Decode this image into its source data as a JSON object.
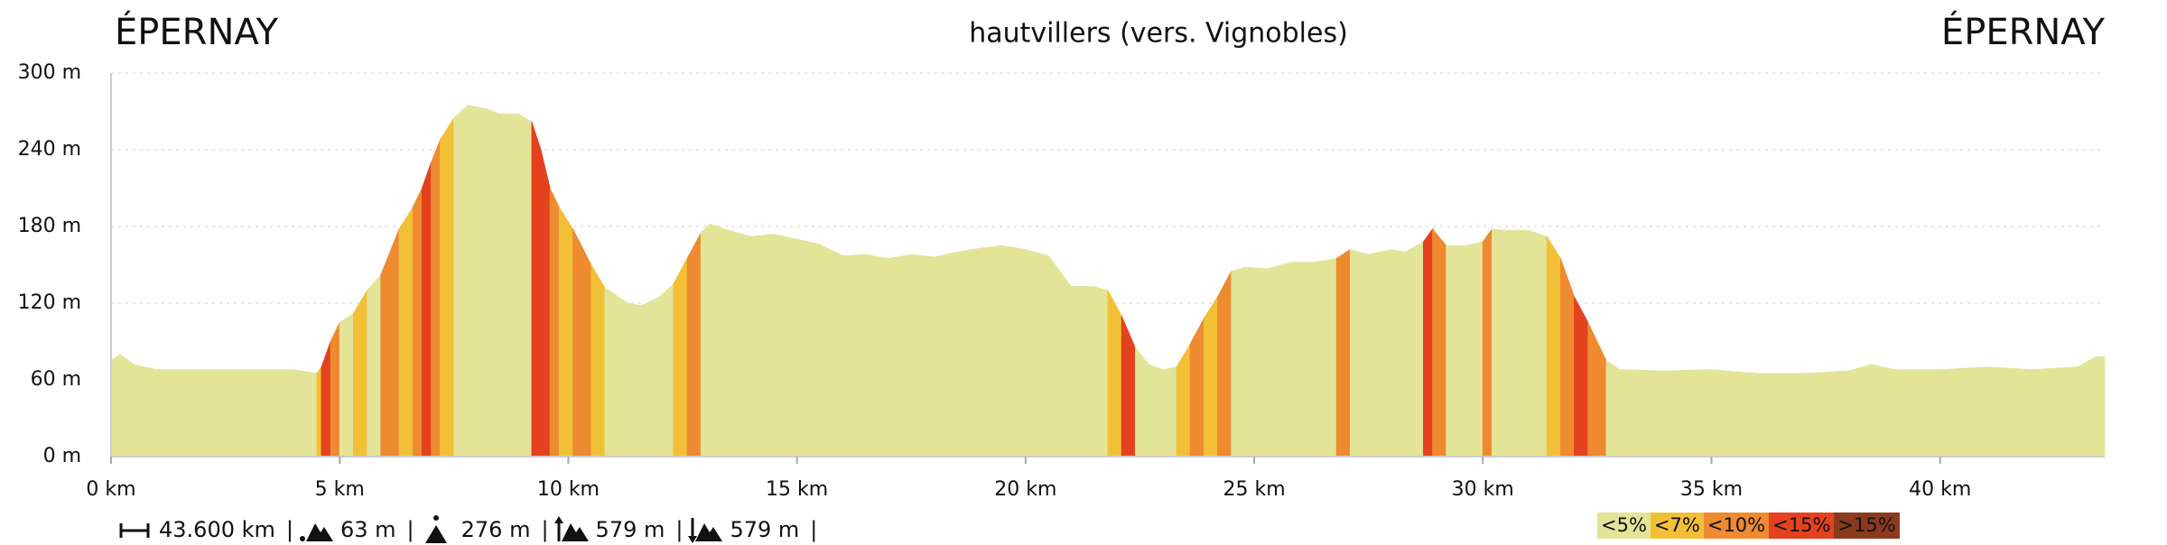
{
  "chart_data": {
    "type": "elevation",
    "title": "hautvillers (vers. Vignobles)",
    "start_label": "ÉPERNAY",
    "end_label": "ÉPERNAY",
    "x": [
      0,
      0.2,
      0.5,
      1,
      2,
      3,
      4,
      4.5,
      4.6,
      4.8,
      5.0,
      5.3,
      5.6,
      5.9,
      6.1,
      6.3,
      6.6,
      6.8,
      7.0,
      7.2,
      7.5,
      7.8,
      8.2,
      8.5,
      8.9,
      9.2,
      9.4,
      9.6,
      9.8,
      10.1,
      10.5,
      10.8,
      11.3,
      11.6,
      12.0,
      12.3,
      12.6,
      12.9,
      13.1,
      13.5,
      14,
      14.5,
      15,
      15.5,
      16,
      16.5,
      17,
      17.5,
      18,
      18.5,
      19,
      19.5,
      20,
      20.5,
      21,
      21.5,
      21.8,
      22.1,
      22.4,
      22.7,
      23.0,
      23.3,
      23.6,
      23.9,
      24.2,
      24.5,
      24.8,
      25.3,
      25.8,
      26.3,
      26.8,
      27.1,
      27.5,
      28,
      28.3,
      28.7,
      28.9,
      29.2,
      29.6,
      30.0,
      30.2,
      30.5,
      31,
      31.4,
      31.7,
      32.0,
      32.3,
      32.7,
      33,
      34,
      35,
      36,
      37,
      38,
      38.5,
      39,
      40,
      41,
      42,
      43,
      43.4,
      43.6
    ],
    "values": [
      75,
      80,
      72,
      68,
      68,
      68,
      68,
      65,
      70,
      90,
      105,
      112,
      130,
      142,
      160,
      178,
      195,
      210,
      230,
      248,
      265,
      275,
      272,
      268,
      268,
      262,
      240,
      210,
      195,
      178,
      150,
      132,
      120,
      118,
      125,
      135,
      155,
      175,
      182,
      177,
      172,
      174,
      170,
      166,
      157,
      158,
      155,
      158,
      156,
      160,
      163,
      165,
      162,
      157,
      133,
      133,
      130,
      110,
      85,
      72,
      68,
      70,
      88,
      108,
      125,
      145,
      148,
      147,
      152,
      152,
      155,
      162,
      158,
      162,
      160,
      168,
      178,
      165,
      165,
      168,
      178,
      177,
      177,
      172,
      155,
      125,
      105,
      75,
      68,
      67,
      68,
      65,
      65,
      67,
      72,
      68,
      68,
      70,
      68,
      70,
      78,
      78
    ],
    "segment_colors": [
      "#e4e498",
      "#e4e498",
      "#e4e498",
      "#e4e498",
      "#e4e498",
      "#e4e498",
      "#e4e498",
      "#f2c037",
      "#e4411e",
      "#ee8a2f",
      "#e4e498",
      "#f2c037",
      "#e4e498",
      "#ee8a2f",
      "#ee8a2f",
      "#f2c037",
      "#ee8a2f",
      "#e4411e",
      "#ee8a2f",
      "#f2c037",
      "#e4e498",
      "#e4e498",
      "#e4e498",
      "#e4e498",
      "#e4e498",
      "#e4411e",
      "#e4411e",
      "#ee8a2f",
      "#f2c037",
      "#ee8a2f",
      "#f2c037",
      "#e4e498",
      "#e4e498",
      "#e4e498",
      "#e4e498",
      "#f2c037",
      "#ee8a2f",
      "#e4e498",
      "#e4e498",
      "#e4e498",
      "#e4e498",
      "#e4e498",
      "#e4e498",
      "#e4e498",
      "#e4e498",
      "#e4e498",
      "#e4e498",
      "#e4e498",
      "#e4e498",
      "#e4e498",
      "#e4e498",
      "#e4e498",
      "#e4e498",
      "#e4e498",
      "#e4e498",
      "#e4e498",
      "#f2c037",
      "#e4411e",
      "#e4e498",
      "#e4e498",
      "#e4e498",
      "#f2c037",
      "#ee8a2f",
      "#f2c037",
      "#ee8a2f",
      "#e4e498",
      "#e4e498",
      "#e4e498",
      "#e4e498",
      "#e4e498",
      "#ee8a2f",
      "#e4e498",
      "#e4e498",
      "#e4e498",
      "#e4e498",
      "#e4411e",
      "#ee8a2f",
      "#e4e498",
      "#e4e498",
      "#ee8a2f",
      "#e4e498",
      "#e4e498",
      "#e4e498",
      "#f2c037",
      "#ee8a2f",
      "#e4411e",
      "#ee8a2f",
      "#e4e498",
      "#e4e498",
      "#e4e498",
      "#e4e498",
      "#e4e498",
      "#e4e498",
      "#e4e498",
      "#e4e498",
      "#e4e498",
      "#e4e498",
      "#e4e498",
      "#e4e498",
      "#e4e498",
      "#e4e498"
    ],
    "xlim": [
      0,
      43.6
    ],
    "ylim": [
      0,
      300
    ],
    "xticks": [
      {
        "value": 0,
        "label": "0 km"
      },
      {
        "value": 5,
        "label": "5 km"
      },
      {
        "value": 10,
        "label": "10 km"
      },
      {
        "value": 15,
        "label": "15 km"
      },
      {
        "value": 20,
        "label": "20 km"
      },
      {
        "value": 25,
        "label": "25 km"
      },
      {
        "value": 30,
        "label": "30 km"
      },
      {
        "value": 35,
        "label": "35 km"
      },
      {
        "value": 40,
        "label": "40 km"
      }
    ],
    "yticks": [
      {
        "value": 0,
        "label": "0 m"
      },
      {
        "value": 60,
        "label": "60 m"
      },
      {
        "value": 120,
        "label": "120 m"
      },
      {
        "value": 180,
        "label": "180 m"
      },
      {
        "value": 240,
        "label": "240 m"
      },
      {
        "value": 300,
        "label": "300 m"
      }
    ],
    "grid": true,
    "grade_classes": [
      {
        "name": "<5%",
        "color": "#e4e498"
      },
      {
        "name": "<7%",
        "color": "#f2c037"
      },
      {
        "name": "<10%",
        "color": "#ee8a2f"
      },
      {
        "name": "<15%",
        "color": "#e4411e"
      },
      {
        "name": ">15%",
        "color": "#8b3a1e"
      }
    ],
    "stats": [
      "43.600 km",
      "63 m",
      "276 m",
      "579 m",
      "579 m"
    ],
    "separator": "|"
  }
}
